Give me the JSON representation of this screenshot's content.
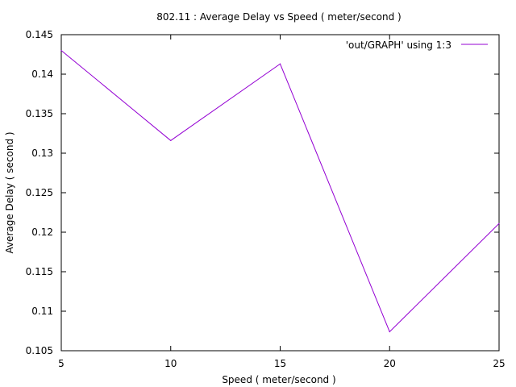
{
  "chart_data": {
    "type": "line",
    "title": "802.11 : Average Delay vs Speed ( meter/second )",
    "xlabel": "Speed ( meter/second )",
    "ylabel": "Average Delay ( second )",
    "xlim": [
      5,
      25
    ],
    "ylim": [
      0.105,
      0.145
    ],
    "xticks": [
      5,
      10,
      15,
      20,
      25
    ],
    "xtick_labels": [
      "5",
      "10",
      "15",
      "20",
      "25"
    ],
    "yticks": [
      0.105,
      0.11,
      0.115,
      0.12,
      0.125,
      0.13,
      0.135,
      0.14,
      0.145
    ],
    "ytick_labels": [
      "0.105",
      "0.11",
      "0.115",
      "0.12",
      "0.125",
      "0.13",
      "0.135",
      "0.14",
      "0.145"
    ],
    "grid": false,
    "legend_position": "top-right",
    "series": [
      {
        "name": "'out/GRAPH' using 1:3",
        "color": "#9400d3",
        "x": [
          5,
          10,
          15,
          20,
          25
        ],
        "y": [
          0.143,
          0.1316,
          0.1413,
          0.1074,
          0.1211
        ]
      }
    ]
  }
}
